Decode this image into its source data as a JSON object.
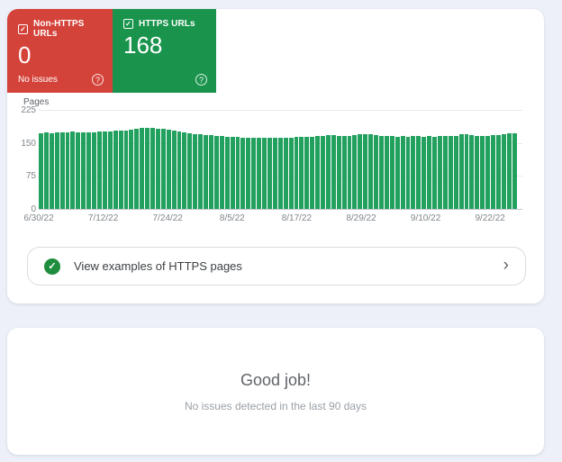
{
  "summary_cards": {
    "non_https": {
      "label": "Non-HTTPS URLs",
      "value": "0",
      "status": "No issues",
      "color": "#d4433a"
    },
    "https": {
      "label": "HTTPS URLs",
      "value": "168",
      "color": "#1a944c"
    }
  },
  "chart_data": {
    "type": "bar",
    "title": "",
    "ylabel": "Pages",
    "xlabel": "",
    "ylim": [
      0,
      225
    ],
    "y_ticks": [
      225,
      150,
      75,
      0
    ],
    "grid": true,
    "legend": false,
    "num_days": 90,
    "date_range": {
      "start": "6/30/22",
      "end": "9/27/22"
    },
    "x_ticks": [
      {
        "label": "6/30/22",
        "day": 0
      },
      {
        "label": "7/12/22",
        "day": 12
      },
      {
        "label": "7/24/22",
        "day": 24
      },
      {
        "label": "8/5/22",
        "day": 36
      },
      {
        "label": "8/17/22",
        "day": 48
      },
      {
        "label": "8/29/22",
        "day": 60
      },
      {
        "label": "9/10/22",
        "day": 72
      },
      {
        "label": "9/22/22",
        "day": 84
      }
    ],
    "series_name": "HTTPS pages",
    "bar_color": "#22a05e",
    "values": [
      172,
      173,
      172,
      174,
      173,
      174,
      175,
      174,
      173,
      174,
      173,
      175,
      176,
      176,
      177,
      178,
      179,
      181,
      183,
      184,
      185,
      184,
      183,
      182,
      180,
      178,
      176,
      174,
      172,
      170,
      169,
      168,
      167,
      166,
      165,
      164,
      163,
      163,
      162,
      162,
      161,
      162,
      161,
      162,
      162,
      161,
      162,
      162,
      163,
      163,
      164,
      164,
      165,
      166,
      167,
      168,
      166,
      165,
      165,
      168,
      169,
      170,
      169,
      168,
      166,
      165,
      165,
      164,
      165,
      164,
      165,
      165,
      164,
      165,
      164,
      165,
      165,
      166,
      166,
      170,
      169,
      168,
      166,
      165,
      166,
      167,
      168,
      170,
      171,
      172
    ]
  },
  "examples_row": {
    "label": "View examples of HTTPS pages"
  },
  "status_card": {
    "title": "Good job!",
    "subtitle": "No issues detected in the last 90 days"
  }
}
